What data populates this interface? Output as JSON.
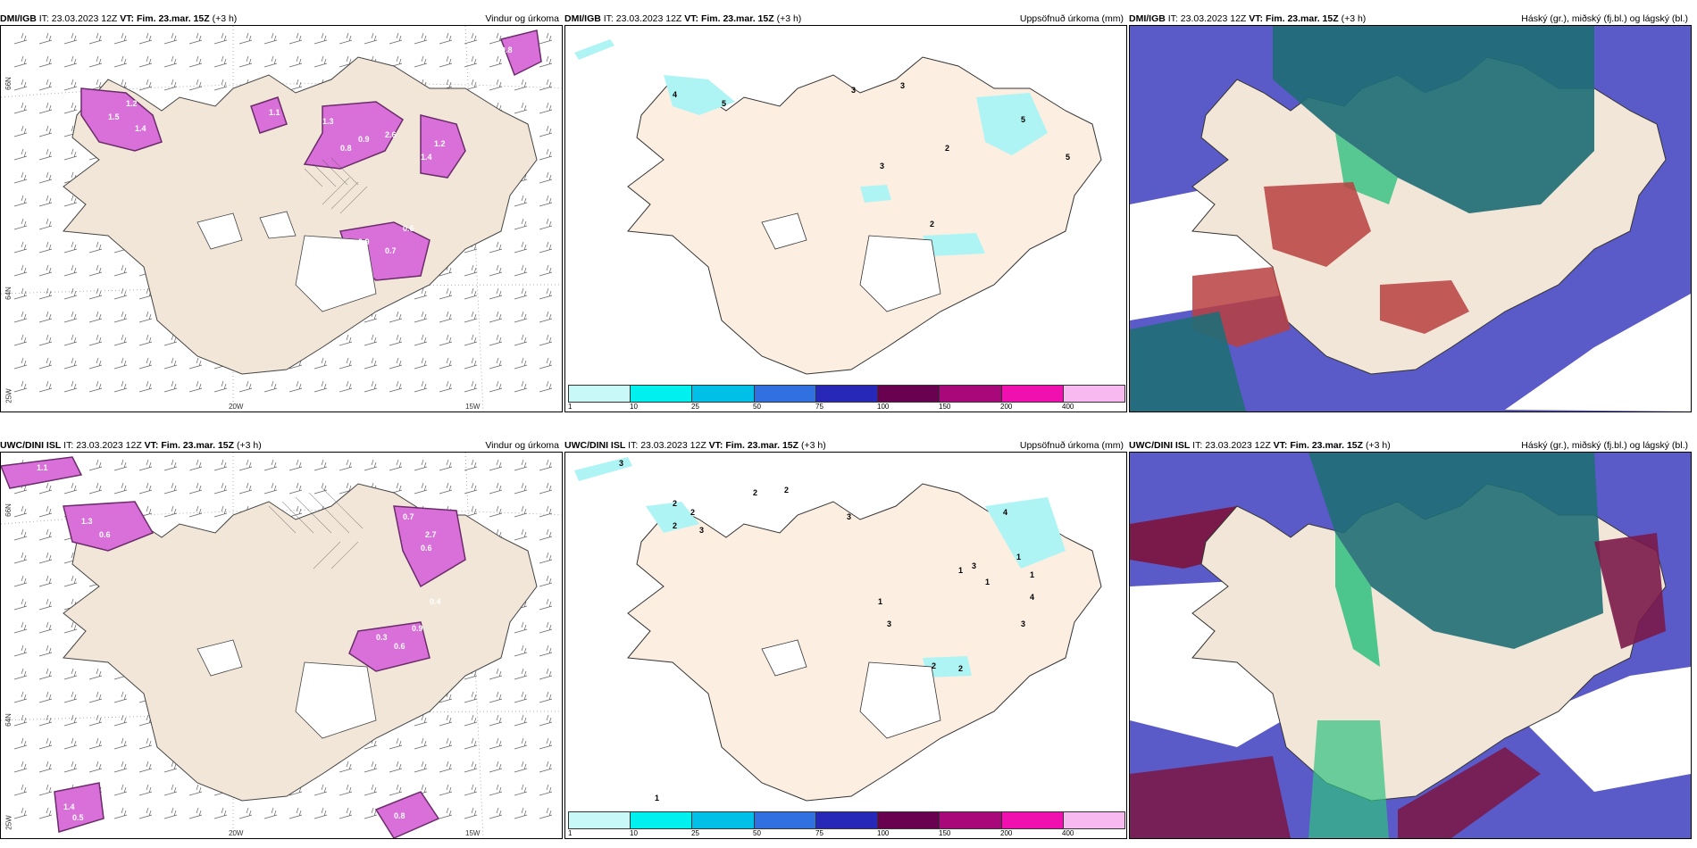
{
  "panels": [
    {
      "model": "DMI/IGB",
      "it_label": "IT:",
      "it": "23.03.2023 12Z",
      "vt_label": "VT:",
      "vt": "Fim. 23.mar. 15Z",
      "lead": "(+3 h)",
      "product": "Vindur og úrkoma"
    },
    {
      "model": "DMI/IGB",
      "it_label": "IT:",
      "it": "23.03.2023 12Z",
      "vt_label": "VT:",
      "vt": "Fim. 23.mar. 15Z",
      "lead": "(+3 h)",
      "product": "Uppsöfnuð úrkoma (mm)"
    },
    {
      "model": "DMI/IGB",
      "it_label": "IT:",
      "it": "23.03.2023 12Z",
      "vt_label": "VT:",
      "vt": "Fim. 23.mar. 15Z",
      "lead": "(+3 h)",
      "product": "Háský (gr.), miðský (fj.bl.) og lágský (bl.)"
    },
    {
      "model": "UWC/DINI ISL",
      "it_label": "IT:",
      "it": "23.03.2023 12Z",
      "vt_label": "VT:",
      "vt": "Fim. 23.mar. 15Z",
      "lead": "(+3 h)",
      "product": "Vindur og úrkoma"
    },
    {
      "model": "UWC/DINI ISL",
      "it_label": "IT:",
      "it": "23.03.2023 12Z",
      "vt_label": "VT:",
      "vt": "Fim. 23.mar. 15Z",
      "lead": "(+3 h)",
      "product": "Uppsöfnuð úrkoma (mm)"
    },
    {
      "model": "UWC/DINI ISL",
      "it_label": "IT:",
      "it": "23.03.2023 12Z",
      "vt_label": "VT:",
      "vt": "Fim. 23.mar. 15Z",
      "lead": "(+3 h)",
      "product": "Háský (gr.), miðský (fj.bl.) og lágský (bl.)"
    }
  ],
  "axis_labels": {
    "lon_20w": "20W",
    "lon_15w": "15W",
    "lat_66n": "66N",
    "lat_64n": "64N",
    "lon_25w": "25W"
  },
  "colorbar": {
    "ticks": [
      "1",
      "10",
      "25",
      "50",
      "75",
      "100",
      "150",
      "200",
      "400"
    ],
    "colors": [
      "#c8f8f8",
      "#00f0f0",
      "#00c0e8",
      "#3070e0",
      "#2828b8",
      "#6a0050",
      "#a8087a",
      "#f010b0",
      "#f8b8f0"
    ]
  },
  "colors": {
    "land": "#f2e6d8",
    "land_accum": "#fcefe2",
    "precip": "#d96fd9",
    "precip_dark": "#6a2c6a",
    "cyan": "#aef4f4",
    "high_cloud": "#1f6e76",
    "mid_cloud": "#5050c0",
    "low_cloud": "#b84040",
    "green": "#30c080"
  },
  "panel1_labels": [
    "1.5",
    "1.4",
    "1.2",
    "0.9",
    "0.8",
    "1.3",
    "2.6",
    "1.4",
    "1.2",
    "0.9",
    "0.7",
    "0.6",
    "1.1",
    "0.8"
  ],
  "panel2_labels": [
    "4",
    "5",
    "3",
    "3",
    "5",
    "3",
    "2",
    "2",
    "5"
  ],
  "panel4_labels": [
    "1.1",
    "0.4",
    "1.3",
    "0.6",
    "0.7",
    "2.7",
    "0.6",
    "0.3",
    "0.6",
    "0.9",
    "0.4",
    "1.4",
    "0.5",
    "0.8"
  ],
  "panel5_labels": [
    "3",
    "2",
    "2",
    "2",
    "2",
    "3",
    "2",
    "3",
    "4",
    "1",
    "1",
    "1",
    "1",
    "1",
    "3",
    "4",
    "3",
    "2",
    "2",
    "3",
    "1"
  ]
}
